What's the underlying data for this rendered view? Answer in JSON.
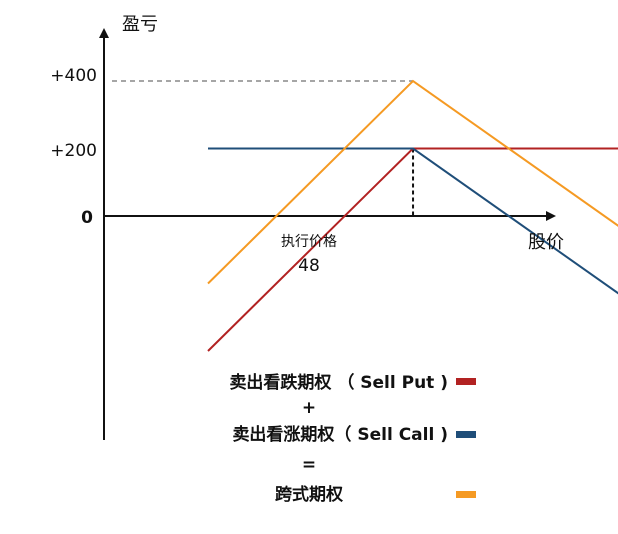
{
  "chart_data": {
    "type": "line",
    "ylabel": "盈亏",
    "xlabel": "股价",
    "y_ticks": [
      "+400",
      "+200",
      "0"
    ],
    "strike_label": "执行价格",
    "strike_value": "48",
    "ylim": [
      -400,
      700
    ],
    "xlim": [
      28,
      80
    ],
    "series": [
      {
        "name": "卖出看跌期权 （ Sell Put )",
        "color": "#b22222",
        "x": [
          28,
          48,
          76
        ],
        "y": [
          -400,
          200,
          200
        ]
      },
      {
        "name": "卖出看涨期权（ Sell Call )",
        "color": "#1f4e79",
        "x": [
          28,
          48,
          76
        ],
        "y": [
          200,
          200,
          -400
        ]
      },
      {
        "name": "跨式期权",
        "color": "#f59a23",
        "x": [
          28,
          48,
          76
        ],
        "y": [
          -200,
          400,
          -200
        ]
      }
    ],
    "legend_ops": [
      "+",
      "="
    ]
  }
}
